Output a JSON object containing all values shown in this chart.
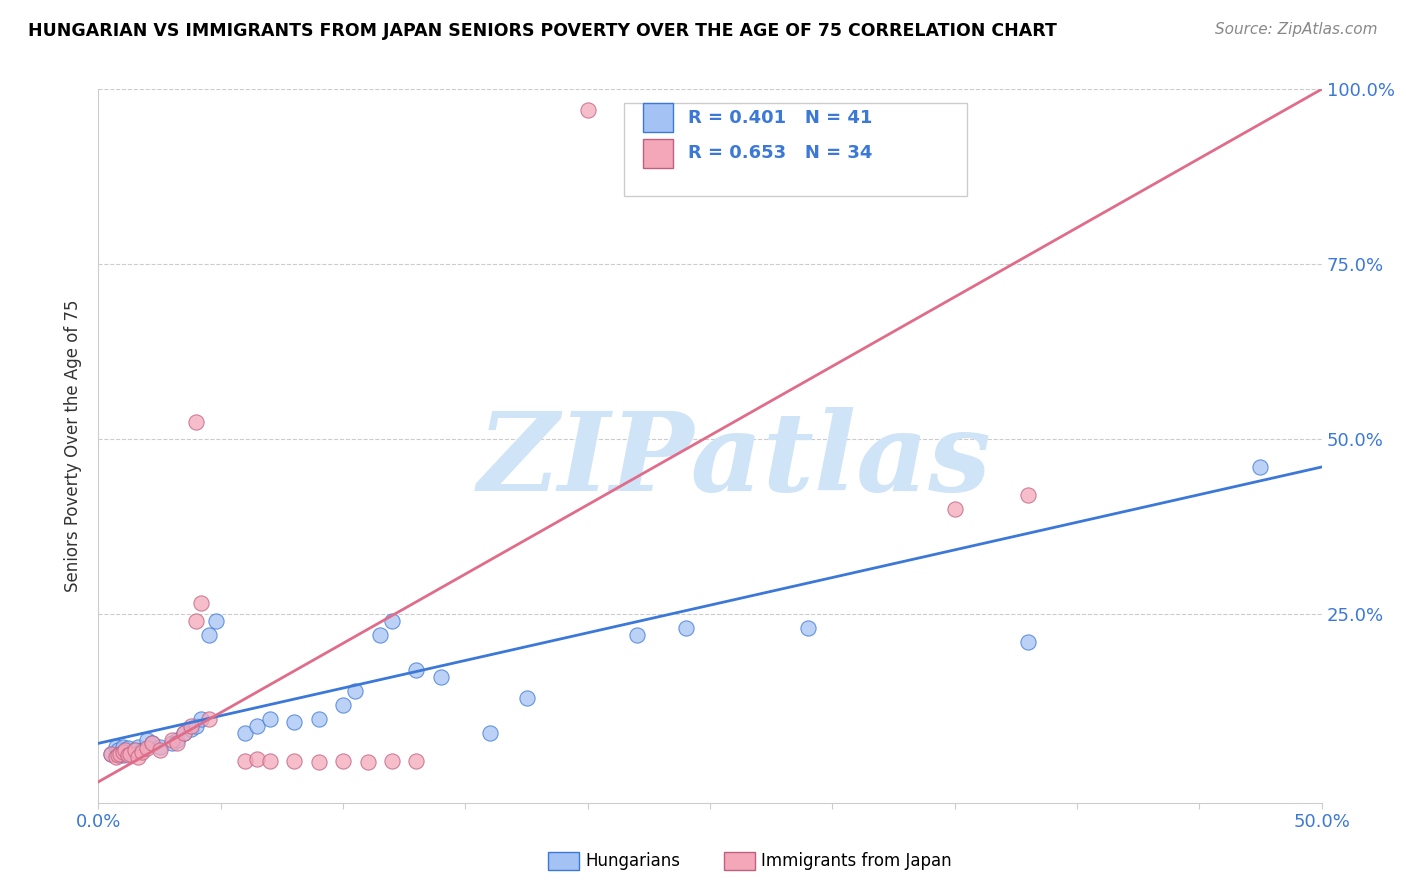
{
  "title": "HUNGARIAN VS IMMIGRANTS FROM JAPAN SENIORS POVERTY OVER THE AGE OF 75 CORRELATION CHART",
  "source": "Source: ZipAtlas.com",
  "ylabel": "Seniors Poverty Over the Age of 75",
  "xlim": [
    0.0,
    0.5
  ],
  "ylim": [
    -0.02,
    1.0
  ],
  "R_blue": 0.401,
  "N_blue": 41,
  "R_pink": 0.653,
  "N_pink": 34,
  "blue_color": "#a4c2f4",
  "pink_color": "#f4a7b9",
  "line_blue": "#3c78d8",
  "line_pink": "#e06c8a",
  "watermark": "ZIPatlas",
  "watermark_color": "#d0e4f7",
  "legend_label_blue": "Hungarians",
  "legend_label_pink": "Immigrants from Japan",
  "blue_scatter": [
    [
      0.005,
      0.05
    ],
    [
      0.007,
      0.06
    ],
    [
      0.008,
      0.055
    ],
    [
      0.009,
      0.05
    ],
    [
      0.01,
      0.048
    ],
    [
      0.01,
      0.06
    ],
    [
      0.011,
      0.052
    ],
    [
      0.012,
      0.058
    ],
    [
      0.013,
      0.05
    ],
    [
      0.015,
      0.055
    ],
    [
      0.016,
      0.06
    ],
    [
      0.018,
      0.055
    ],
    [
      0.02,
      0.07
    ],
    [
      0.022,
      0.065
    ],
    [
      0.025,
      0.06
    ],
    [
      0.03,
      0.065
    ],
    [
      0.032,
      0.07
    ],
    [
      0.035,
      0.08
    ],
    [
      0.038,
      0.085
    ],
    [
      0.04,
      0.09
    ],
    [
      0.042,
      0.1
    ],
    [
      0.045,
      0.22
    ],
    [
      0.048,
      0.24
    ],
    [
      0.06,
      0.08
    ],
    [
      0.065,
      0.09
    ],
    [
      0.07,
      0.1
    ],
    [
      0.08,
      0.095
    ],
    [
      0.09,
      0.1
    ],
    [
      0.1,
      0.12
    ],
    [
      0.105,
      0.14
    ],
    [
      0.115,
      0.22
    ],
    [
      0.12,
      0.24
    ],
    [
      0.13,
      0.17
    ],
    [
      0.14,
      0.16
    ],
    [
      0.16,
      0.08
    ],
    [
      0.175,
      0.13
    ],
    [
      0.22,
      0.22
    ],
    [
      0.24,
      0.23
    ],
    [
      0.29,
      0.23
    ],
    [
      0.38,
      0.21
    ],
    [
      0.475,
      0.46
    ]
  ],
  "pink_scatter": [
    [
      0.005,
      0.05
    ],
    [
      0.007,
      0.045
    ],
    [
      0.008,
      0.048
    ],
    [
      0.009,
      0.05
    ],
    [
      0.01,
      0.052
    ],
    [
      0.011,
      0.055
    ],
    [
      0.012,
      0.048
    ],
    [
      0.013,
      0.05
    ],
    [
      0.015,
      0.055
    ],
    [
      0.016,
      0.046
    ],
    [
      0.018,
      0.052
    ],
    [
      0.02,
      0.058
    ],
    [
      0.022,
      0.065
    ],
    [
      0.025,
      0.055
    ],
    [
      0.03,
      0.07
    ],
    [
      0.032,
      0.065
    ],
    [
      0.035,
      0.08
    ],
    [
      0.038,
      0.09
    ],
    [
      0.04,
      0.24
    ],
    [
      0.042,
      0.265
    ],
    [
      0.045,
      0.1
    ],
    [
      0.06,
      0.04
    ],
    [
      0.065,
      0.042
    ],
    [
      0.07,
      0.04
    ],
    [
      0.08,
      0.04
    ],
    [
      0.09,
      0.038
    ],
    [
      0.1,
      0.04
    ],
    [
      0.11,
      0.038
    ],
    [
      0.12,
      0.04
    ],
    [
      0.13,
      0.04
    ],
    [
      0.04,
      0.525
    ],
    [
      0.35,
      0.4
    ],
    [
      0.38,
      0.42
    ],
    [
      0.2,
      0.97
    ]
  ],
  "blue_line": [
    [
      0.0,
      0.065
    ],
    [
      0.5,
      0.46
    ]
  ],
  "pink_line": [
    [
      0.0,
      0.01
    ],
    [
      0.5,
      1.0
    ]
  ]
}
